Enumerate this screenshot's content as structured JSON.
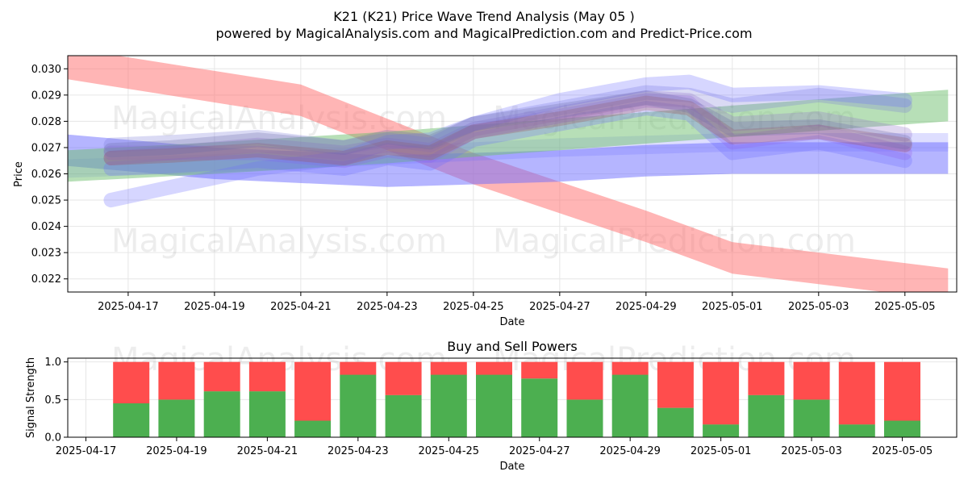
{
  "header": {
    "title": "K21 (K21) Price Wave Trend Analysis (May 05 )",
    "subtitle": "powered by MagicalAnalysis.com and MagicalPrediction.com and Predict-Price.com"
  },
  "watermarks": [
    "MagicalAnalysis.com",
    "MagicalPrediction.com"
  ],
  "colors": {
    "red_band": "#ff6b6b",
    "blue_band": "#6b6bff",
    "green_band": "#6fbf6f",
    "purple_line": "#9b5de5",
    "buy": "#4caf50",
    "sell": "#ff4d4d",
    "grid": "#e6e6e6"
  },
  "chart_data": [
    {
      "type": "line",
      "title": "",
      "xlabel": "Date",
      "ylabel": "Price",
      "ylim": [
        0.0215,
        0.0305
      ],
      "xlim": [
        "2025-04-15.6",
        "2025-05-06.2"
      ],
      "x_ticks": [
        "2025-04-17",
        "2025-04-19",
        "2025-04-21",
        "2025-04-23",
        "2025-04-25",
        "2025-04-27",
        "2025-04-29",
        "2025-05-01",
        "2025-05-03",
        "2025-05-05"
      ],
      "y_ticks": [
        "0.022",
        "0.023",
        "0.024",
        "0.025",
        "0.026",
        "0.027",
        "0.028",
        "0.029",
        "0.030"
      ],
      "grid": true,
      "bands": [
        {
          "color": "red",
          "x": [
            "2025-04-15.6",
            "2025-04-21",
            "2025-04-25",
            "2025-04-29",
            "2025-05-01",
            "2025-05-06"
          ],
          "y": [
            0.0302,
            0.0288,
            0.0262,
            0.024,
            0.0228,
            0.0218
          ],
          "width": 0.0012
        },
        {
          "color": "blue",
          "x": [
            "2025-04-15.6",
            "2025-04-19",
            "2025-04-23",
            "2025-04-27",
            "2025-04-29",
            "2025-05-01",
            "2025-05-06"
          ],
          "y": [
            0.0269,
            0.0264,
            0.0261,
            0.0263,
            0.0265,
            0.0266,
            0.0266
          ],
          "width": 0.0012
        },
        {
          "color": "blue",
          "x": [
            "2025-04-15.6",
            "2025-04-19",
            "2025-04-23",
            "2025-04-27",
            "2025-05-01",
            "2025-05-06"
          ],
          "y": [
            0.0262,
            0.0264,
            0.0267,
            0.027,
            0.0272,
            0.0272
          ],
          "width": 0.0007
        },
        {
          "color": "green",
          "x": [
            "2025-04-15.6",
            "2025-04-19",
            "2025-04-23",
            "2025-04-27",
            "2025-05-01",
            "2025-05-06"
          ],
          "y": [
            0.0263,
            0.0266,
            0.027,
            0.0275,
            0.028,
            0.0286
          ],
          "width": 0.0012
        }
      ],
      "wave_lines": [
        {
          "x": [
            "2025-04-16.6",
            "2025-04-18",
            "2025-04-20",
            "2025-04-22",
            "2025-04-23",
            "2025-04-24",
            "2025-04-25",
            "2025-04-27",
            "2025-04-29",
            "2025-04-30",
            "2025-05-01",
            "2025-05-03",
            "2025-05-05"
          ],
          "y": [
            0.0268,
            0.0268,
            0.0268,
            0.0265,
            0.0269,
            0.0267,
            0.0276,
            0.0282,
            0.0288,
            0.0287,
            0.0272,
            0.0276,
            0.0268
          ]
        },
        {
          "x": [
            "2025-04-16.6",
            "2025-04-18",
            "2025-04-20",
            "2025-04-22",
            "2025-04-23",
            "2025-04-24",
            "2025-04-25",
            "2025-04-27",
            "2025-04-29",
            "2025-04-30",
            "2025-05-01",
            "2025-05-03",
            "2025-05-05"
          ],
          "y": [
            0.0262,
            0.0263,
            0.0265,
            0.0262,
            0.0266,
            0.0264,
            0.0273,
            0.0279,
            0.0285,
            0.0283,
            0.0268,
            0.0272,
            0.0265
          ]
        },
        {
          "x": [
            "2025-04-16.6",
            "2025-04-18",
            "2025-04-20",
            "2025-04-22",
            "2025-04-23",
            "2025-04-24",
            "2025-04-25",
            "2025-04-27",
            "2025-04-29",
            "2025-04-30",
            "2025-05-01",
            "2025-05-03",
            "2025-05-05"
          ],
          "y": [
            0.0271,
            0.0272,
            0.0274,
            0.027,
            0.0273,
            0.0271,
            0.0279,
            0.0285,
            0.0291,
            0.029,
            0.0286,
            0.029,
            0.0286
          ]
        },
        {
          "x": [
            "2025-04-16.6",
            "2025-04-18",
            "2025-04-20",
            "2025-04-22",
            "2025-04-23",
            "2025-04-24",
            "2025-04-25",
            "2025-04-27",
            "2025-04-29",
            "2025-04-30",
            "2025-05-01",
            "2025-05-03",
            "2025-05-05"
          ],
          "y": [
            0.0266,
            0.0268,
            0.0271,
            0.0268,
            0.0271,
            0.0269,
            0.0277,
            0.0283,
            0.0289,
            0.0288,
            0.0279,
            0.0281,
            0.0275
          ]
        },
        {
          "x": [
            "2025-04-16.6",
            "2025-04-18",
            "2025-04-20",
            "2025-04-22",
            "2025-04-23",
            "2025-04-24",
            "2025-04-25",
            "2025-04-27",
            "2025-04-29",
            "2025-04-30",
            "2025-05-01",
            "2025-05-03",
            "2025-05-05"
          ],
          "y": [
            0.025,
            0.0255,
            0.0262,
            0.0266,
            0.0272,
            0.0273,
            0.0279,
            0.0288,
            0.0294,
            0.0295,
            0.029,
            0.0291,
            0.0288
          ]
        },
        {
          "x": [
            "2025-04-16.6",
            "2025-04-18",
            "2025-04-20",
            "2025-04-22",
            "2025-04-23",
            "2025-04-24",
            "2025-04-25",
            "2025-04-27",
            "2025-04-29",
            "2025-04-30",
            "2025-05-01",
            "2025-05-03",
            "2025-05-05"
          ],
          "y": [
            0.0266,
            0.0267,
            0.0269,
            0.0266,
            0.027,
            0.0268,
            0.0276,
            0.0281,
            0.0287,
            0.0285,
            0.0274,
            0.0276,
            0.0271
          ]
        },
        {
          "x": [
            "2025-04-16.6",
            "2025-04-18",
            "2025-04-20",
            "2025-04-22",
            "2025-04-23",
            "2025-04-24",
            "2025-04-25",
            "2025-04-27",
            "2025-04-29",
            "2025-04-30",
            "2025-05-01",
            "2025-05-03",
            "2025-05-05"
          ],
          "y": [
            0.0269,
            0.027,
            0.0273,
            0.027,
            0.0274,
            0.0272,
            0.0279,
            0.0284,
            0.0289,
            0.0286,
            0.0277,
            0.0278,
            0.0272
          ]
        }
      ]
    },
    {
      "type": "bar",
      "title": "Buy and Sell Powers",
      "xlabel": "Date",
      "ylabel": "Signal Strength",
      "ylim": [
        0,
        1.05
      ],
      "y_ticks": [
        "0.0",
        "0.5",
        "1.0"
      ],
      "x_ticks": [
        "2025-04-17",
        "2025-04-19",
        "2025-04-21",
        "2025-04-23",
        "2025-04-25",
        "2025-04-27",
        "2025-04-29",
        "2025-05-01",
        "2025-05-03",
        "2025-05-05"
      ],
      "categories": [
        "2025-04-18",
        "2025-04-19",
        "2025-04-20",
        "2025-04-21",
        "2025-04-22",
        "2025-04-23",
        "2025-04-24",
        "2025-04-25",
        "2025-04-26",
        "2025-04-27",
        "2025-04-28",
        "2025-04-29",
        "2025-04-30",
        "2025-05-01",
        "2025-05-02",
        "2025-05-03",
        "2025-05-04",
        "2025-05-05"
      ],
      "series": [
        {
          "name": "Buy",
          "values": [
            0.45,
            0.5,
            0.61,
            0.61,
            0.22,
            0.83,
            0.56,
            0.83,
            0.83,
            0.78,
            0.5,
            0.83,
            0.39,
            0.17,
            0.56,
            0.5,
            0.17,
            0.22
          ]
        },
        {
          "name": "Sell",
          "values": [
            0.55,
            0.5,
            0.39,
            0.39,
            0.78,
            0.17,
            0.44,
            0.17,
            0.17,
            0.22,
            0.5,
            0.17,
            0.61,
            0.83,
            0.44,
            0.5,
            0.83,
            0.78
          ]
        }
      ],
      "grid": true
    }
  ]
}
